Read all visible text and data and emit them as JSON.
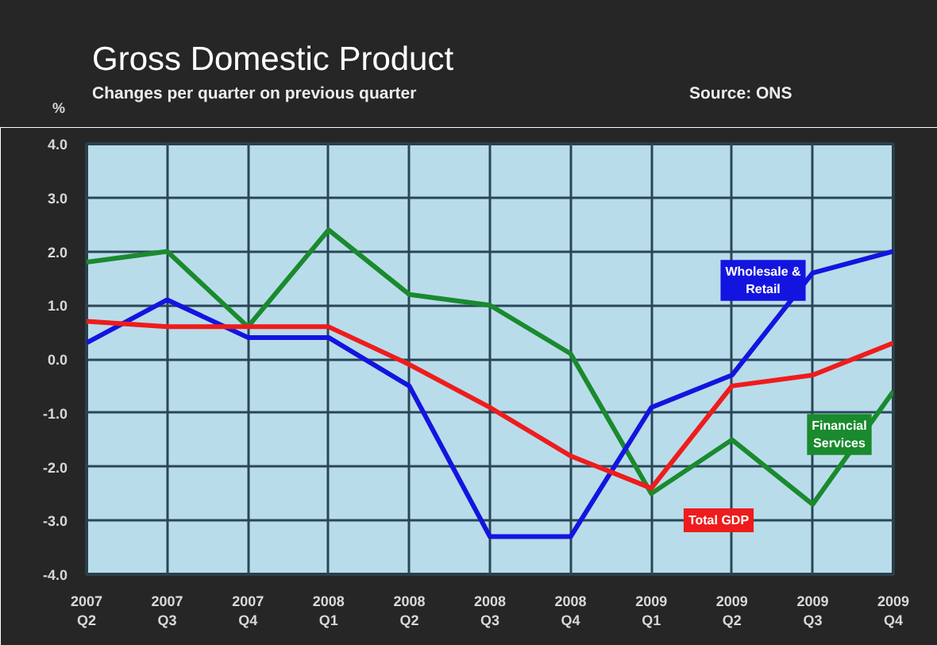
{
  "chart_data": {
    "type": "line",
    "title": "Gross Domestic Product",
    "subtitle": "Changes per quarter on previous quarter",
    "ylabel": "%",
    "annotations": [
      "Source: ONS"
    ],
    "categories": [
      "2007\nQ2",
      "2007\nQ3",
      "2007\nQ4",
      "2008\nQ1",
      "2008\nQ2",
      "2008\nQ3",
      "2008\nQ4",
      "2009\nQ1",
      "2009\nQ2",
      "2009\nQ3",
      "2009\nQ4"
    ],
    "series": [
      {
        "name": "Financial Services",
        "color": "#1a8a2e",
        "values": [
          1.8,
          2.0,
          0.6,
          2.4,
          1.2,
          1.0,
          0.1,
          -2.5,
          -1.5,
          -2.7,
          -0.6
        ]
      },
      {
        "name": "Wholesale & Retail",
        "color": "#1414e0",
        "values": [
          0.3,
          1.1,
          0.4,
          0.4,
          -0.5,
          -3.3,
          -3.3,
          -0.9,
          -0.3,
          1.6,
          2.0
        ]
      },
      {
        "name": "Total GDP",
        "color": "#ee1c1c",
        "values": [
          0.7,
          0.6,
          0.6,
          0.6,
          -0.1,
          -0.9,
          -1.8,
          -2.4,
          -0.5,
          -0.3,
          0.3
        ]
      }
    ],
    "ylim": [
      -4,
      4
    ],
    "yticks": [
      {
        "value": -4,
        "label": "-4.0"
      },
      {
        "value": -3,
        "label": "-3.0"
      },
      {
        "value": -2,
        "label": "-2.0"
      },
      {
        "value": -1,
        "label": "-1.0"
      },
      {
        "value": 0,
        "label": "0.0"
      },
      {
        "value": 1,
        "label": "1.0"
      },
      {
        "value": 2,
        "label": "2.0"
      },
      {
        "value": 3,
        "label": "3.0"
      },
      {
        "value": 4,
        "label": "4.0"
      }
    ],
    "grid": true,
    "legend": false,
    "marker": "none",
    "line_style": "solid"
  }
}
